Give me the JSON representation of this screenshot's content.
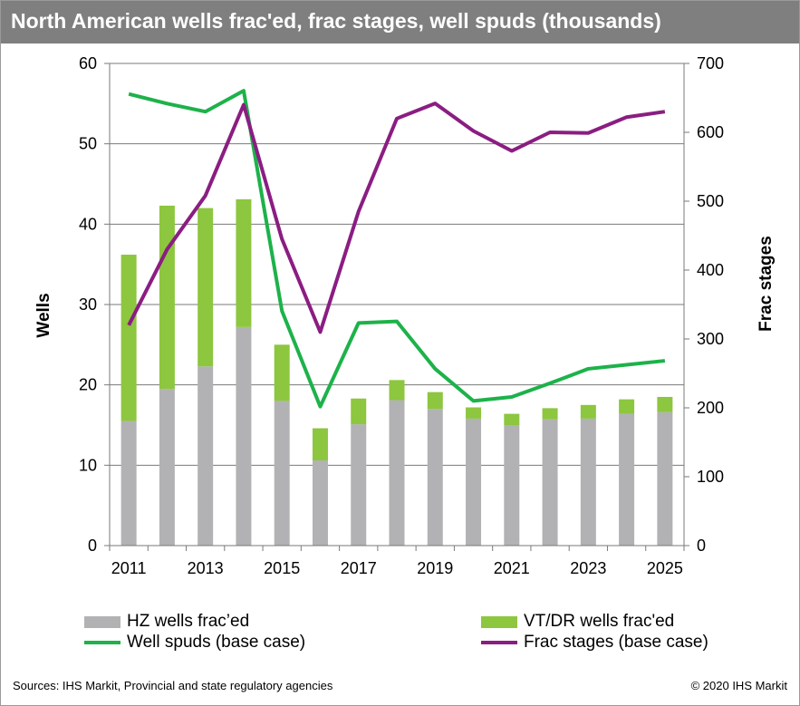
{
  "title": "North American wells frac'ed, frac stages, well spuds (thousands)",
  "source": "Sources: IHS Markit, Provincial and state regulatory agencies",
  "copyright": "© 2020 IHS Markit",
  "colors": {
    "hz": "#b2b2b4",
    "vt": "#8dc63f",
    "spuds": "#1db24a",
    "stages": "#8b1d82",
    "title_bg": "#7f7f7f"
  },
  "chart_data": {
    "type": "bar",
    "x": [
      2011,
      2012,
      2013,
      2014,
      2015,
      2016,
      2017,
      2018,
      2019,
      2020,
      2021,
      2022,
      2023,
      2024,
      2025
    ],
    "x_tick_labels": [
      "2011",
      "2013",
      "2015",
      "2017",
      "2019",
      "2021",
      "2023",
      "2025"
    ],
    "y_left": {
      "label": "Wells",
      "lim": [
        0,
        60
      ],
      "ticks": [
        0,
        10,
        20,
        30,
        40,
        50,
        60
      ]
    },
    "y_right": {
      "label": "Frac stages",
      "lim": [
        0,
        700
      ],
      "ticks": [
        0,
        100,
        200,
        300,
        400,
        500,
        600,
        700
      ]
    },
    "series": [
      {
        "name": "HZ wells frac’ed",
        "type": "bar",
        "axis": "left",
        "values": [
          15.5,
          19.5,
          22.3,
          27.2,
          18.0,
          10.6,
          15.1,
          18.1,
          17.0,
          15.8,
          15.0,
          15.7,
          15.8,
          16.4,
          16.6
        ]
      },
      {
        "name": "VT/DR wells frac'ed",
        "type": "bar",
        "axis": "left",
        "stacked": true,
        "values": [
          20.7,
          22.8,
          19.7,
          15.9,
          7.0,
          4.0,
          3.2,
          2.5,
          2.1,
          1.4,
          1.4,
          1.4,
          1.7,
          1.8,
          1.9
        ]
      },
      {
        "name": "Well spuds (base case)",
        "type": "line",
        "axis": "left",
        "values": [
          56.2,
          55.0,
          54.0,
          56.6,
          29.2,
          17.3,
          27.7,
          27.9,
          22.0,
          18.0,
          18.5,
          20.2,
          22.0,
          22.5,
          23.0
        ]
      },
      {
        "name": "Frac stages (base case)",
        "type": "line",
        "axis": "right",
        "values": [
          320,
          430,
          508,
          640,
          445,
          310,
          485,
          620,
          642,
          602,
          573,
          600,
          599,
          622,
          630
        ]
      }
    ],
    "grid": true,
    "legend_position": "bottom"
  }
}
